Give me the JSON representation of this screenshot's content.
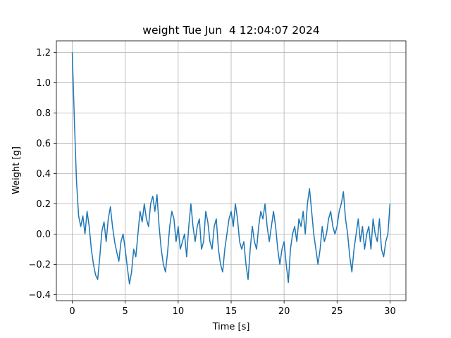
{
  "chart_data": {
    "type": "line",
    "title": "weight Tue Jun  4 12:04:07 2024",
    "x_label": "Time [s]",
    "y_label": "Weight [g]",
    "x": [
      0,
      0.2,
      0.4,
      0.6,
      0.8,
      1,
      1.2,
      1.4,
      1.6,
      1.8,
      2,
      2.2,
      2.4,
      2.6,
      2.8,
      3,
      3.2,
      3.4,
      3.6,
      3.8,
      4,
      4.2,
      4.4,
      4.6,
      4.8,
      5,
      5.2,
      5.4,
      5.6,
      5.8,
      6,
      6.2,
      6.4,
      6.6,
      6.8,
      7,
      7.2,
      7.4,
      7.6,
      7.8,
      8,
      8.2,
      8.4,
      8.6,
      8.8,
      9,
      9.2,
      9.4,
      9.6,
      9.8,
      10,
      10.2,
      10.4,
      10.6,
      10.8,
      11,
      11.2,
      11.4,
      11.6,
      11.8,
      12,
      12.2,
      12.4,
      12.6,
      12.8,
      13,
      13.2,
      13.4,
      13.6,
      13.8,
      14,
      14.2,
      14.4,
      14.6,
      14.8,
      15,
      15.2,
      15.4,
      15.6,
      15.8,
      16,
      16.2,
      16.4,
      16.6,
      16.8,
      17,
      17.2,
      17.4,
      17.6,
      17.8,
      18,
      18.2,
      18.4,
      18.6,
      18.8,
      19,
      19.2,
      19.4,
      19.6,
      19.8,
      20,
      20.2,
      20.4,
      20.6,
      20.8,
      21,
      21.2,
      21.4,
      21.6,
      21.8,
      22,
      22.2,
      22.4,
      22.6,
      22.8,
      23,
      23.2,
      23.4,
      23.6,
      23.8,
      24,
      24.2,
      24.4,
      24.6,
      24.8,
      25,
      25.2,
      25.4,
      25.6,
      25.8,
      26,
      26.2,
      26.4,
      26.6,
      26.8,
      27,
      27.2,
      27.4,
      27.6,
      27.8,
      28,
      28.2,
      28.4,
      28.6,
      28.8,
      29,
      29.2,
      29.4,
      29.6,
      29.8,
      30
    ],
    "series": [
      {
        "name": "weight",
        "color": "#1f77b4",
        "values": [
          1.2,
          0.75,
          0.35,
          0.12,
          0.05,
          0.12,
          0.0,
          0.15,
          0.05,
          -0.1,
          -0.2,
          -0.27,
          -0.3,
          -0.15,
          0.02,
          0.08,
          -0.05,
          0.1,
          0.18,
          0.05,
          -0.05,
          -0.12,
          -0.18,
          -0.05,
          0.0,
          -0.1,
          -0.22,
          -0.33,
          -0.25,
          -0.1,
          -0.15,
          0.0,
          0.15,
          0.08,
          0.2,
          0.1,
          0.05,
          0.2,
          0.25,
          0.15,
          0.26,
          0.05,
          -0.1,
          -0.2,
          -0.25,
          -0.12,
          0.05,
          0.15,
          0.1,
          -0.05,
          0.05,
          -0.1,
          -0.05,
          0.0,
          -0.15,
          0.05,
          0.2,
          0.05,
          -0.05,
          0.05,
          0.1,
          -0.1,
          -0.05,
          0.15,
          0.08,
          -0.05,
          -0.1,
          0.05,
          0.1,
          -0.1,
          -0.2,
          -0.25,
          -0.1,
          0.0,
          0.1,
          0.15,
          0.05,
          0.2,
          0.1,
          -0.05,
          -0.1,
          -0.05,
          -0.2,
          -0.3,
          -0.1,
          0.05,
          -0.05,
          -0.1,
          0.05,
          0.15,
          0.1,
          0.2,
          0.05,
          -0.05,
          0.05,
          0.15,
          0.05,
          -0.1,
          -0.2,
          -0.1,
          -0.05,
          -0.2,
          -0.32,
          -0.1,
          0.0,
          0.05,
          -0.05,
          0.1,
          0.05,
          0.15,
          0.0,
          0.2,
          0.3,
          0.15,
          0.0,
          -0.1,
          -0.2,
          -0.1,
          0.05,
          -0.05,
          0.0,
          0.1,
          0.15,
          0.05,
          0.0,
          0.05,
          0.15,
          0.2,
          0.28,
          0.1,
          0.0,
          -0.15,
          -0.25,
          -0.1,
          0.0,
          0.1,
          -0.05,
          0.05,
          -0.1,
          0.0,
          0.05,
          -0.1,
          0.1,
          0.0,
          -0.05,
          0.1,
          -0.1,
          -0.15,
          -0.05,
          0.0,
          0.2
        ]
      }
    ],
    "xlim": [
      -1.5,
      31.5
    ],
    "ylim": [
      -0.44,
      1.276
    ],
    "xticks": [
      0,
      5,
      10,
      15,
      20,
      25,
      30
    ],
    "yticks": [
      {
        "value": -0.4,
        "label": "−0.4"
      },
      {
        "value": -0.2,
        "label": "−0.2"
      },
      {
        "value": 0,
        "label": "0.0"
      },
      0.2,
      0.4,
      0.6,
      0.8,
      {
        "value": 1,
        "label": "1.0"
      },
      1.2
    ],
    "grid": true
  }
}
